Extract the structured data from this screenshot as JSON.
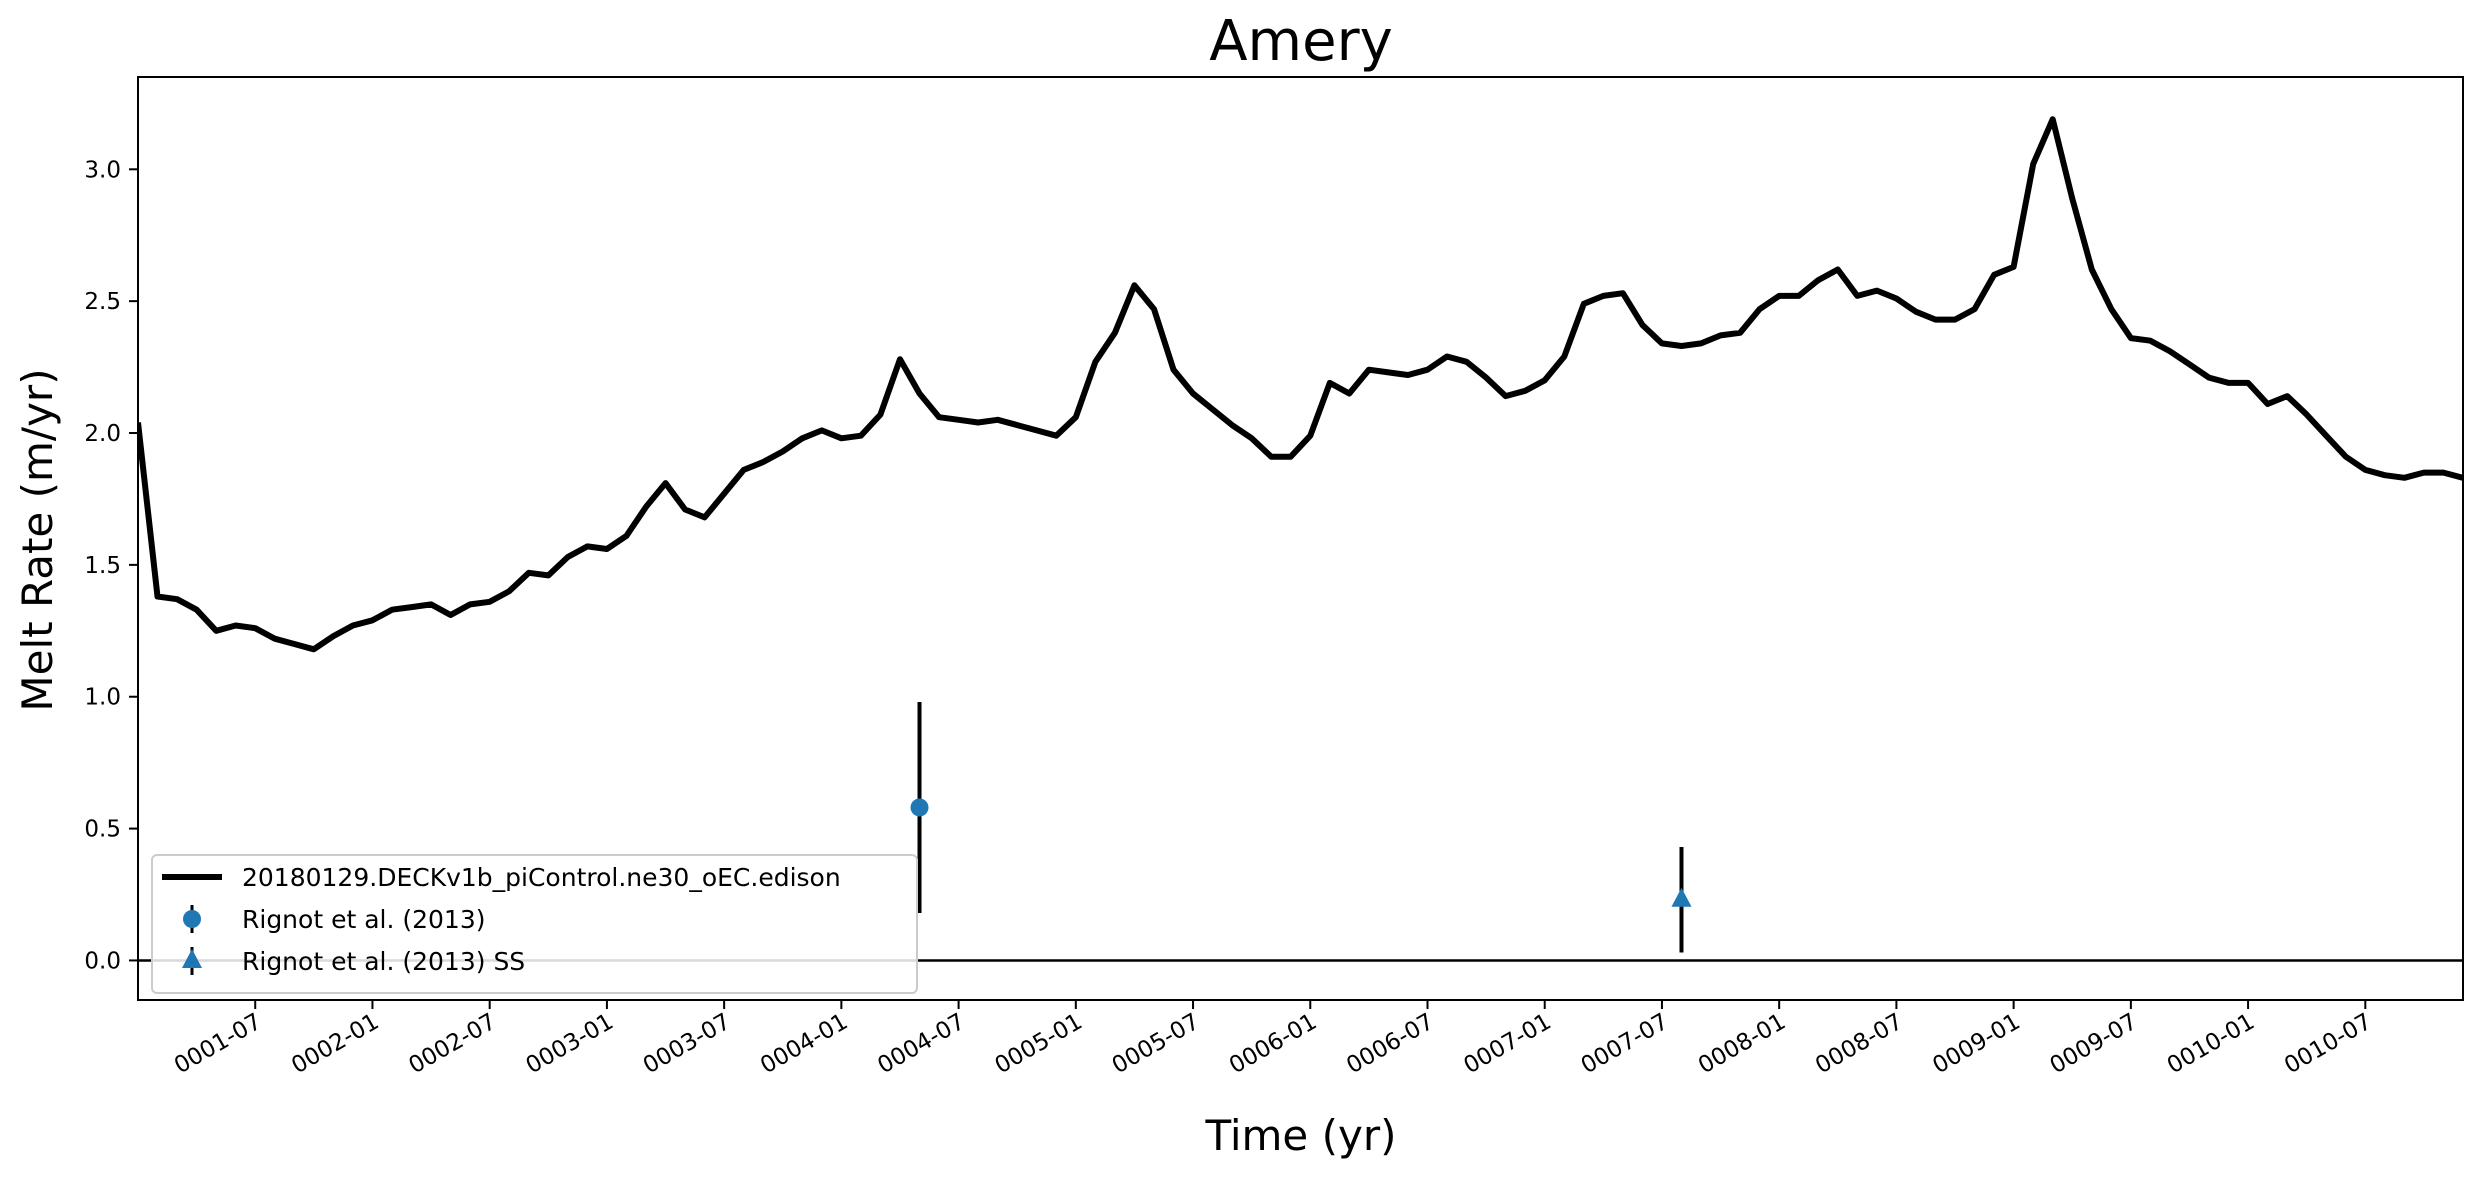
{
  "chart_data": {
    "type": "line",
    "title": "Amery",
    "xlabel": "Time (yr)",
    "ylabel": "Melt Rate (m/yr)",
    "xlim": [
      "0001-01",
      "0010-12"
    ],
    "ylim": [
      -0.15,
      3.35
    ],
    "grid": false,
    "legend_position": "lower-left",
    "x_ticks": [
      "0001-07",
      "0002-01",
      "0002-07",
      "0003-01",
      "0003-07",
      "0004-01",
      "0004-07",
      "0005-01",
      "0005-07",
      "0006-01",
      "0006-07",
      "0007-01",
      "0007-07",
      "0008-01",
      "0008-07",
      "0009-01",
      "0009-07",
      "0010-01",
      "0010-07"
    ],
    "y_ticks": [
      "0.0",
      "0.5",
      "1.0",
      "1.5",
      "2.0",
      "2.5",
      "3.0"
    ],
    "reference_line": {
      "y": 0.0,
      "color": "#000000"
    },
    "series": [
      {
        "name": "20180129.DECKv1b_piControl.ne30_oEC.edison",
        "kind": "line",
        "color": "#000000",
        "x": [
          "0001-01",
          "0001-02",
          "0001-03",
          "0001-04",
          "0001-05",
          "0001-06",
          "0001-07",
          "0001-08",
          "0001-09",
          "0001-10",
          "0001-11",
          "0001-12",
          "0002-01",
          "0002-02",
          "0002-03",
          "0002-04",
          "0002-05",
          "0002-06",
          "0002-07",
          "0002-08",
          "0002-09",
          "0002-10",
          "0002-11",
          "0002-12",
          "0003-01",
          "0003-02",
          "0003-03",
          "0003-04",
          "0003-05",
          "0003-06",
          "0003-07",
          "0003-08",
          "0003-09",
          "0003-10",
          "0003-11",
          "0003-12",
          "0004-01",
          "0004-02",
          "0004-03",
          "0004-04",
          "0004-05",
          "0004-06",
          "0004-07",
          "0004-08",
          "0004-09",
          "0004-10",
          "0004-11",
          "0004-12",
          "0005-01",
          "0005-02",
          "0005-03",
          "0005-04",
          "0005-05",
          "0005-06",
          "0005-07",
          "0005-08",
          "0005-09",
          "0005-10",
          "0005-11",
          "0005-12",
          "0006-01",
          "0006-02",
          "0006-03",
          "0006-04",
          "0006-05",
          "0006-06",
          "0006-07",
          "0006-08",
          "0006-09",
          "0006-10",
          "0006-11",
          "0006-12",
          "0007-01",
          "0007-02",
          "0007-03",
          "0007-04",
          "0007-05",
          "0007-06",
          "0007-07",
          "0007-08",
          "0007-09",
          "0007-10",
          "0007-11",
          "0007-12",
          "0008-01",
          "0008-02",
          "0008-03",
          "0008-04",
          "0008-05",
          "0008-06",
          "0008-07",
          "0008-08",
          "0008-09",
          "0008-10",
          "0008-11",
          "0008-12",
          "0009-01",
          "0009-02",
          "0009-03",
          "0009-04",
          "0009-05",
          "0009-06",
          "0009-07",
          "0009-08",
          "0009-09",
          "0009-10",
          "0009-11",
          "0009-12",
          "0010-01",
          "0010-02",
          "0010-03",
          "0010-04",
          "0010-05",
          "0010-06",
          "0010-07",
          "0010-08",
          "0010-09",
          "0010-10",
          "0010-11",
          "0010-12"
        ],
        "y": [
          2.04,
          1.38,
          1.37,
          1.33,
          1.25,
          1.27,
          1.26,
          1.22,
          1.2,
          1.18,
          1.23,
          1.27,
          1.29,
          1.33,
          1.34,
          1.35,
          1.31,
          1.35,
          1.36,
          1.4,
          1.47,
          1.46,
          1.53,
          1.57,
          1.56,
          1.61,
          1.72,
          1.81,
          1.71,
          1.68,
          1.77,
          1.86,
          1.89,
          1.93,
          1.98,
          2.01,
          1.98,
          1.99,
          2.07,
          2.28,
          2.15,
          2.06,
          2.05,
          2.04,
          2.05,
          2.03,
          2.01,
          1.99,
          2.06,
          2.27,
          2.38,
          2.56,
          2.47,
          2.24,
          2.15,
          2.09,
          2.03,
          1.98,
          1.91,
          1.91,
          1.99,
          2.19,
          2.15,
          2.24,
          2.23,
          2.22,
          2.24,
          2.29,
          2.27,
          2.21,
          2.14,
          2.16,
          2.2,
          2.29,
          2.49,
          2.52,
          2.53,
          2.41,
          2.34,
          2.33,
          2.34,
          2.37,
          2.38,
          2.47,
          2.52,
          2.52,
          2.58,
          2.62,
          2.52,
          2.54,
          2.51,
          2.46,
          2.43,
          2.43,
          2.47,
          2.6,
          2.63,
          3.02,
          3.19,
          2.89,
          2.62,
          2.47,
          2.36,
          2.35,
          2.31,
          2.26,
          2.21,
          2.19,
          2.19,
          2.11,
          2.14,
          2.07,
          1.99,
          1.91,
          1.86,
          1.84,
          1.83,
          1.85,
          1.85,
          1.83
        ]
      },
      {
        "name": "Rignot et al. (2013)",
        "kind": "errorbar",
        "marker": "circle",
        "color": "#1f77b4",
        "x": [
          "0004-05"
        ],
        "y": [
          0.58
        ],
        "yerr": [
          0.4
        ]
      },
      {
        "name": "Rignot et al. (2013) SS",
        "kind": "errorbar",
        "marker": "triangle",
        "color": "#1f77b4",
        "x": [
          "0007-08"
        ],
        "y": [
          0.23
        ],
        "yerr": [
          0.2
        ]
      }
    ]
  }
}
